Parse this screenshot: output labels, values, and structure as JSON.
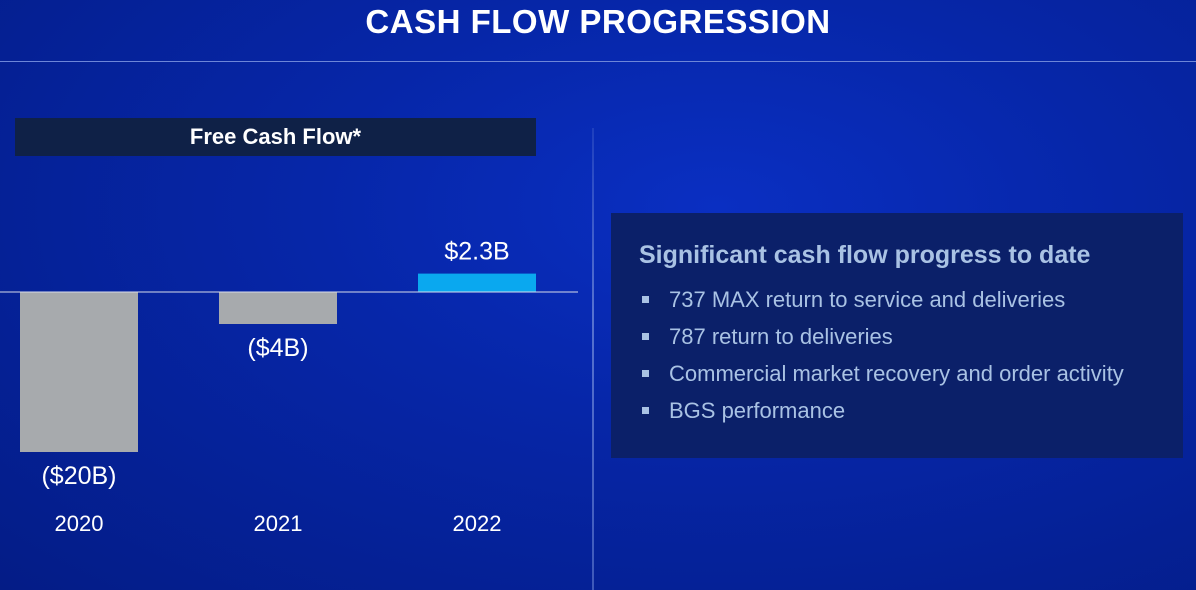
{
  "slide": {
    "title": "CASH FLOW PROGRESSION"
  },
  "chart_header": "Free Cash Flow*",
  "chart_data": {
    "type": "bar",
    "categories": [
      "2020",
      "2021",
      "2022"
    ],
    "values": [
      -20,
      -4,
      2.3
    ],
    "data_labels": [
      "($20B)",
      "($4B)",
      "$2.3B"
    ],
    "unit": "$B",
    "colors": {
      "negative": "#a7aaad",
      "positive": "#0aa8ef",
      "baseline": "#d8dcea"
    }
  },
  "panel": {
    "heading": "Significant cash flow progress to date",
    "bullets": [
      "737 MAX return to service and deliveries",
      "787 return to deliveries",
      "Commercial market recovery and order activity",
      "BGS performance"
    ]
  }
}
